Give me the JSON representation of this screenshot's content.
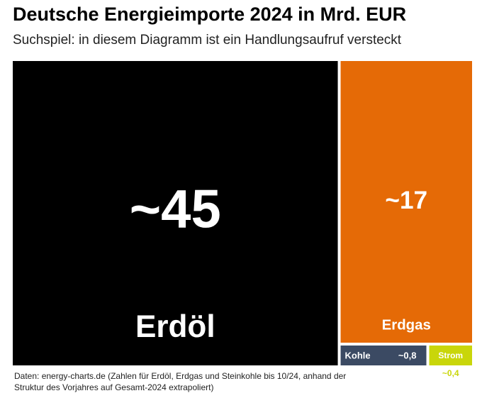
{
  "chart_data": {
    "type": "treemap",
    "title": "Deutsche Energieimporte 2024 in Mrd. EUR",
    "subtitle": "Suchspiel: in diesem Diagramm ist ein Handlungsaufruf versteckt",
    "categories": [
      "Erdöl",
      "Erdgas",
      "Kohle",
      "Strom"
    ],
    "values": [
      45,
      17,
      0.8,
      0.4
    ],
    "value_labels": [
      "~45",
      "~17",
      "~0,8",
      "~0,4"
    ],
    "colors": [
      "#000000",
      "#e56a06",
      "#3b4a63",
      "#c9d60a"
    ],
    "source": "Daten: energy-charts.de (Zahlen für Erdöl, Erdgas und Steinkohle bis 10/24, anhand der Struktur des Vorjahres auf Gesamt-2024 extrapoliert)"
  }
}
